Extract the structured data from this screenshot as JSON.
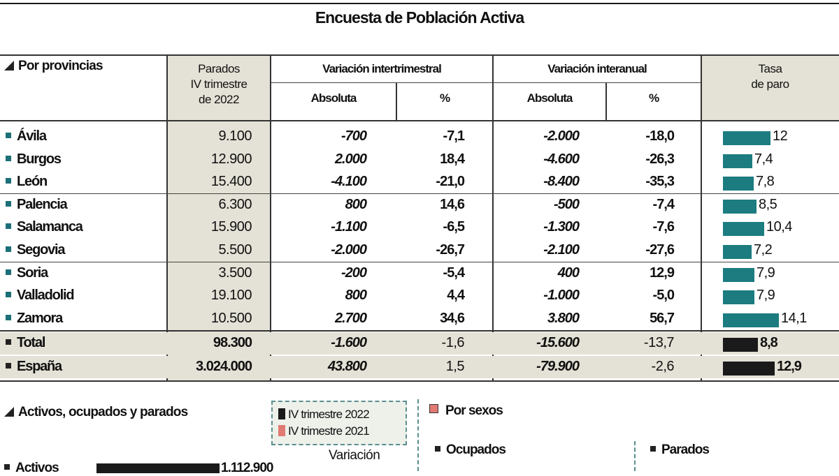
{
  "title": "Encuesta de Población Activa",
  "provincias": {
    "section_label": "Por provincias",
    "headers": {
      "parados_line1": "Parados",
      "parados_line2": "IV trimestre",
      "parados_line3": "de 2022",
      "var_inter": "Variación intertrimestral",
      "var_anual": "Variación interanual",
      "absoluta": "Absoluta",
      "pct": "%",
      "tasa_line1": "Tasa",
      "tasa_line2": "de paro"
    },
    "rows": [
      {
        "name": "Ávila",
        "parados": "9.100",
        "vi_abs": "-700",
        "vi_pct": "-7,1",
        "va_abs": "-2.000",
        "va_pct": "-18,0",
        "tasa": "12",
        "tasa_value": 12.0
      },
      {
        "name": "Burgos",
        "parados": "12.900",
        "vi_abs": "2.000",
        "vi_pct": "18,4",
        "va_abs": "-4.600",
        "va_pct": "-26,3",
        "tasa": "7,4",
        "tasa_value": 7.4
      },
      {
        "name": "León",
        "parados": "15.400",
        "vi_abs": "-4.100",
        "vi_pct": "-21,0",
        "va_abs": "-8.400",
        "va_pct": "-35,3",
        "tasa": "7,8",
        "tasa_value": 7.8
      },
      {
        "name": "Palencia",
        "parados": "6.300",
        "vi_abs": "800",
        "vi_pct": "14,6",
        "va_abs": "-500",
        "va_pct": "-7,4",
        "tasa": "8,5",
        "tasa_value": 8.5
      },
      {
        "name": "Salamanca",
        "parados": "15.900",
        "vi_abs": "-1.100",
        "vi_pct": "-6,5",
        "va_abs": "-1.300",
        "va_pct": "-7,6",
        "tasa": "10,4",
        "tasa_value": 10.4
      },
      {
        "name": "Segovia",
        "parados": "5.500",
        "vi_abs": "-2.000",
        "vi_pct": "-26,7",
        "va_abs": "-2.100",
        "va_pct": "-27,6",
        "tasa": "7,2",
        "tasa_value": 7.2
      },
      {
        "name": "Soria",
        "parados": "3.500",
        "vi_abs": "-200",
        "vi_pct": "-5,4",
        "va_abs": "400",
        "va_pct": "12,9",
        "tasa": "7,9",
        "tasa_value": 7.9
      },
      {
        "name": "Valladolid",
        "parados": "19.100",
        "vi_abs": "800",
        "vi_pct": "4,4",
        "va_abs": "-1.000",
        "va_pct": "-5,0",
        "tasa": "7,9",
        "tasa_value": 7.9
      },
      {
        "name": "Zamora",
        "parados": "10.500",
        "vi_abs": "2.700",
        "vi_pct": "34,6",
        "va_abs": "3.800",
        "va_pct": "56,7",
        "tasa": "14,1",
        "tasa_value": 14.1
      }
    ],
    "totals": [
      {
        "name": "Total",
        "parados": "98.300",
        "vi_abs": "-1.600",
        "vi_pct": "-1,6",
        "va_abs": "-15.600",
        "va_pct": "-13,7",
        "tasa": "8,8",
        "tasa_value": 8.8
      },
      {
        "name": "España",
        "parados": "3.024.000",
        "vi_abs": "43.800",
        "vi_pct": "1,5",
        "va_abs": "-79.900",
        "va_pct": "-2,6",
        "tasa": "12,9",
        "tasa_value": 12.9
      }
    ],
    "colors": {
      "bar": "#1c7c7f",
      "bar_total": "#1a1a1a",
      "shade": "#e4e1d6"
    }
  },
  "lower": {
    "section_label": "Activos, ocupados y parados",
    "legend": [
      {
        "label": "IV trimestre 2022",
        "color": "#1a1a1a"
      },
      {
        "label": "IV trimestre 2021",
        "color": "#e07a72"
      }
    ],
    "variacion_label": "Variación",
    "por_sexos_label": "Por sexos",
    "ocupados_label": "Ocupados",
    "parados_label": "Parados",
    "activos_label": "Activos",
    "activos_value": "1.112.900"
  }
}
